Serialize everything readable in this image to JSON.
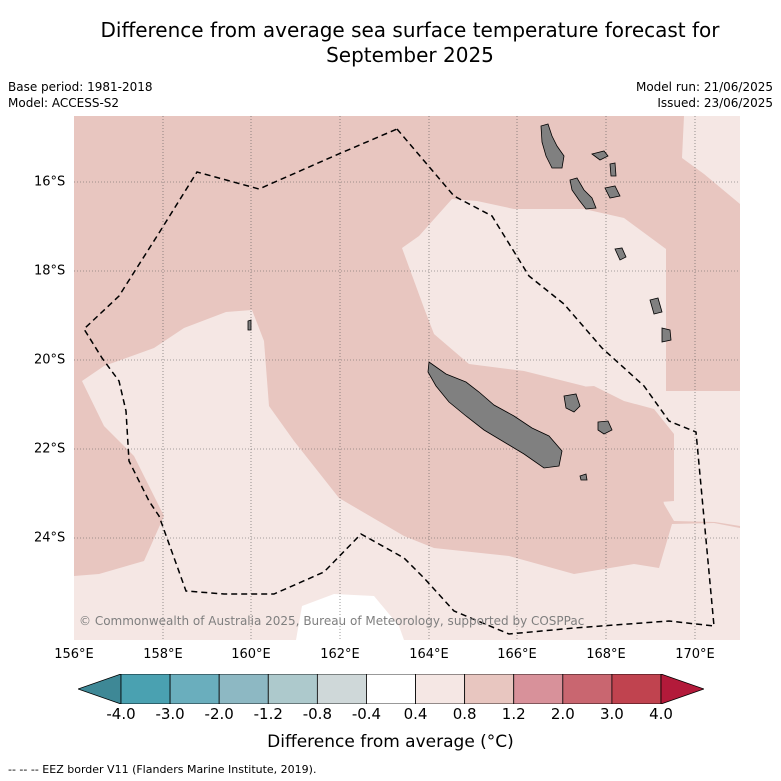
{
  "title": "Difference from average sea surface temperature forecast for September 2025",
  "meta": {
    "base_period": "Base period: 1981-2018",
    "model": "Model: ACCESS-S2",
    "model_run": "Model run: 21/06/2025",
    "issued": "Issued: 23/06/2025"
  },
  "map": {
    "copyright": "© Commonwealth of Australia 2025, Bureau of Meteorology, supported by COSPPac",
    "x_ticks": [
      "156°E",
      "158°E",
      "160°E",
      "162°E",
      "164°E",
      "166°E",
      "168°E",
      "170°E"
    ],
    "y_ticks": [
      "16°S",
      "18°S",
      "20°S",
      "22°S",
      "24°S"
    ],
    "land_color": "#808080",
    "colors": {
      "anomaly_0_4_to_0_8": "#f5e7e4",
      "anomaly_0_8_to_1_2": "#e8c6c0",
      "anomaly_minus_0_4_to_0_4": "#ffffff"
    }
  },
  "colorbar": {
    "labels": [
      "-4.0",
      "-3.0",
      "-2.0",
      "-1.2",
      "-0.8",
      "-0.4",
      "0.4",
      "0.8",
      "1.2",
      "2.0",
      "3.0",
      "4.0"
    ],
    "colors": [
      "#3e8896",
      "#4aa1b1",
      "#6aaebd",
      "#8db8c3",
      "#adc9cc",
      "#cfd8d9",
      "#ffffff",
      "#f5e7e4",
      "#e8c6c0",
      "#d8919a",
      "#c96670",
      "#c0434f",
      "#b31a3a"
    ],
    "title": "Difference from average (°C)"
  },
  "footnote": "-- -- -- EEZ border V11 (Flanders Marine Institute, 2019)."
}
